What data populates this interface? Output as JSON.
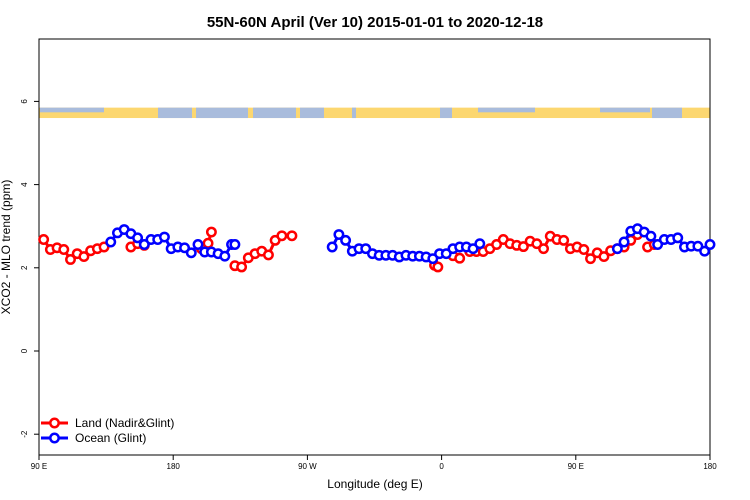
{
  "chart_data": {
    "type": "scatter",
    "title": "55N-60N April (Ver 10)   2015-01-01 to 2020-12-18",
    "xlabel": "Longitude (deg E)",
    "ylabel": "XCO2 - MLO trend (ppm)",
    "xlim": [
      90,
      450
    ],
    "ylim": [
      -2.5,
      7.5
    ],
    "x_ticks": [
      {
        "value": 90,
        "label": "90 E"
      },
      {
        "value": 162,
        "label": "180"
      },
      {
        "value": 234,
        "label": "90 W"
      },
      {
        "value": 306,
        "label": "0"
      },
      {
        "value": 378,
        "label": "90 E"
      },
      {
        "value": 450,
        "label": "180"
      }
    ],
    "y_ticks": [
      {
        "value": -2,
        "label": "-2"
      },
      {
        "value": 0,
        "label": "0"
      },
      {
        "value": 2,
        "label": "2"
      },
      {
        "value": 4,
        "label": "4"
      },
      {
        "value": 6,
        "label": "6"
      }
    ],
    "legend_position": "bottom-left",
    "land_ocean_strip": {
      "ymin": 5.6,
      "ymax": 5.85,
      "land_color": "#fcd770",
      "ocean_color": "#a9bcdc"
    },
    "series": [
      {
        "name": "Land (Nadir&Glint)",
        "color": "#ff0000",
        "points": [
          [
            92.5,
            2.68
          ],
          [
            96.1,
            2.44
          ],
          [
            99.7,
            2.48
          ],
          [
            103.3,
            2.44
          ],
          [
            106.9,
            2.2
          ],
          [
            110.5,
            2.34
          ],
          [
            114.1,
            2.27
          ],
          [
            117.7,
            2.41
          ],
          [
            121.3,
            2.46
          ],
          [
            124.9,
            2.5
          ],
          [
            139.3,
            2.5
          ],
          [
            142.9,
            2.58
          ],
          [
            146.5,
            2.54
          ],
          [
            177.1,
            2.46
          ],
          [
            180.7,
            2.59
          ],
          [
            182.5,
            2.86
          ],
          [
            195.1,
            2.05
          ],
          [
            198.7,
            2.02
          ],
          [
            202.3,
            2.24
          ],
          [
            205.9,
            2.34
          ],
          [
            209.5,
            2.4
          ],
          [
            213.1,
            2.31
          ],
          [
            216.7,
            2.66
          ],
          [
            220.3,
            2.77
          ],
          [
            225.7,
            2.77
          ],
          [
            302.2,
            2.06
          ],
          [
            304.0,
            2.02
          ],
          [
            312.1,
            2.29
          ],
          [
            315.7,
            2.23
          ],
          [
            321.1,
            2.39
          ],
          [
            324.7,
            2.39
          ],
          [
            328.3,
            2.39
          ],
          [
            331.9,
            2.46
          ],
          [
            335.5,
            2.56
          ],
          [
            339.1,
            2.68
          ],
          [
            342.7,
            2.58
          ],
          [
            346.3,
            2.54
          ],
          [
            349.9,
            2.51
          ],
          [
            353.5,
            2.64
          ],
          [
            357.1,
            2.58
          ],
          [
            360.7,
            2.46
          ],
          [
            364.3,
            2.76
          ],
          [
            367.9,
            2.68
          ],
          [
            371.5,
            2.66
          ],
          [
            375.1,
            2.46
          ],
          [
            378.7,
            2.5
          ],
          [
            382.3,
            2.44
          ],
          [
            385.9,
            2.22
          ],
          [
            389.5,
            2.36
          ],
          [
            393.1,
            2.27
          ],
          [
            396.7,
            2.41
          ],
          [
            400.3,
            2.46
          ],
          [
            403.9,
            2.5
          ],
          [
            407.5,
            2.66
          ],
          [
            411.1,
            2.8
          ],
          [
            416.5,
            2.5
          ],
          [
            420.1,
            2.56
          ]
        ]
      },
      {
        "name": "Ocean (Glint)",
        "color": "#0000ff",
        "points": [
          [
            128.5,
            2.62
          ],
          [
            132.1,
            2.84
          ],
          [
            135.7,
            2.92
          ],
          [
            139.3,
            2.82
          ],
          [
            142.9,
            2.72
          ],
          [
            146.5,
            2.56
          ],
          [
            150.1,
            2.68
          ],
          [
            153.7,
            2.68
          ],
          [
            157.3,
            2.74
          ],
          [
            160.9,
            2.46
          ],
          [
            164.5,
            2.5
          ],
          [
            168.1,
            2.48
          ],
          [
            171.7,
            2.36
          ],
          [
            175.3,
            2.56
          ],
          [
            178.9,
            2.38
          ],
          [
            182.5,
            2.38
          ],
          [
            186.1,
            2.34
          ],
          [
            189.7,
            2.28
          ],
          [
            193.3,
            2.56
          ],
          [
            195.1,
            2.56
          ],
          [
            247.3,
            2.5
          ],
          [
            250.9,
            2.8
          ],
          [
            254.5,
            2.66
          ],
          [
            258.1,
            2.4
          ],
          [
            261.7,
            2.46
          ],
          [
            265.3,
            2.46
          ],
          [
            268.9,
            2.34
          ],
          [
            272.5,
            2.3
          ],
          [
            276.1,
            2.3
          ],
          [
            279.7,
            2.3
          ],
          [
            283.3,
            2.26
          ],
          [
            286.9,
            2.3
          ],
          [
            290.5,
            2.28
          ],
          [
            294.1,
            2.28
          ],
          [
            297.7,
            2.26
          ],
          [
            301.3,
            2.22
          ],
          [
            304.9,
            2.34
          ],
          [
            308.5,
            2.34
          ],
          [
            312.1,
            2.46
          ],
          [
            315.7,
            2.5
          ],
          [
            319.3,
            2.5
          ],
          [
            322.9,
            2.46
          ],
          [
            326.5,
            2.58
          ],
          [
            400.3,
            2.46
          ],
          [
            403.9,
            2.62
          ],
          [
            407.5,
            2.88
          ],
          [
            411.1,
            2.94
          ],
          [
            414.7,
            2.86
          ],
          [
            418.3,
            2.76
          ],
          [
            421.9,
            2.56
          ],
          [
            425.5,
            2.68
          ],
          [
            429.1,
            2.68
          ],
          [
            432.7,
            2.72
          ],
          [
            436.3,
            2.5
          ],
          [
            439.9,
            2.52
          ],
          [
            443.5,
            2.52
          ],
          [
            447.1,
            2.4
          ],
          [
            450.0,
            2.56
          ]
        ]
      }
    ]
  }
}
